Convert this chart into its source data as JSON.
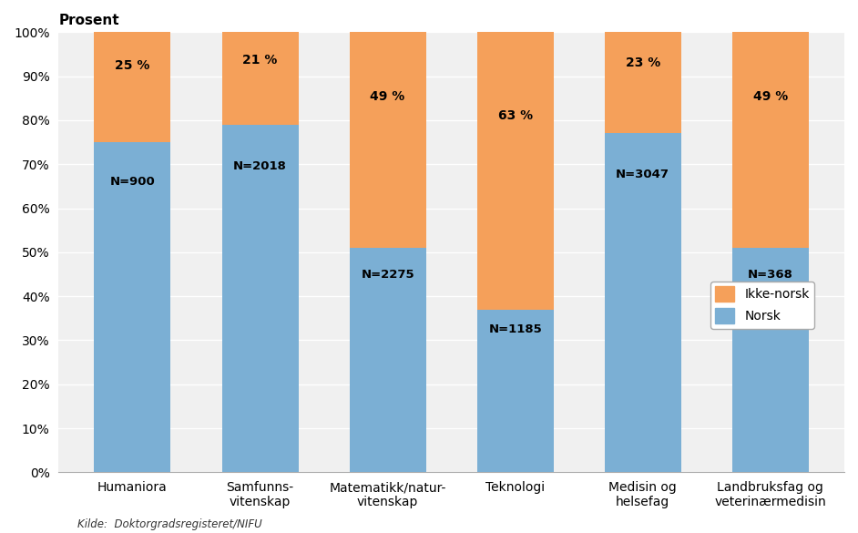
{
  "categories": [
    "Humaniora",
    "Samfunns-\nvitenskap",
    "Matematikk/natur-\nvitenskap",
    "Teknologi",
    "Medisin og\nhelsefag",
    "Landbruksfag og\nveterinærmedisin"
  ],
  "norsk": [
    75,
    79,
    51,
    37,
    77,
    51
  ],
  "ikke_norsk": [
    25,
    21,
    49,
    63,
    23,
    49
  ],
  "n_labels": [
    "N=900",
    "N=2018",
    "N=2275",
    "N=1185",
    "N=3047",
    "N=368"
  ],
  "norsk_color": "#7BAFD4",
  "ikke_norsk_color": "#F5A05A",
  "background_color": "#FFFFFF",
  "plot_bg_color": "#F0F0F0",
  "grid_color": "#FFFFFF",
  "ylabel": "Prosent",
  "yticks": [
    0,
    10,
    20,
    30,
    40,
    50,
    60,
    70,
    80,
    90,
    100
  ],
  "ytick_labels": [
    "0%",
    "10%",
    "20%",
    "30%",
    "40%",
    "50%",
    "60%",
    "70%",
    "80%",
    "90%",
    "100%"
  ],
  "legend_ikke_norsk": "Ikke-norsk",
  "legend_norsk": "Norsk",
  "source_text": "Kilde:  Doktorgradsregisteret/NIFU",
  "tick_fontsize": 10,
  "annotation_fontsize": 10,
  "n_label_fontsize": 9.5,
  "bar_width": 0.6,
  "title_text": "Prosent",
  "title_fontsize": 11
}
